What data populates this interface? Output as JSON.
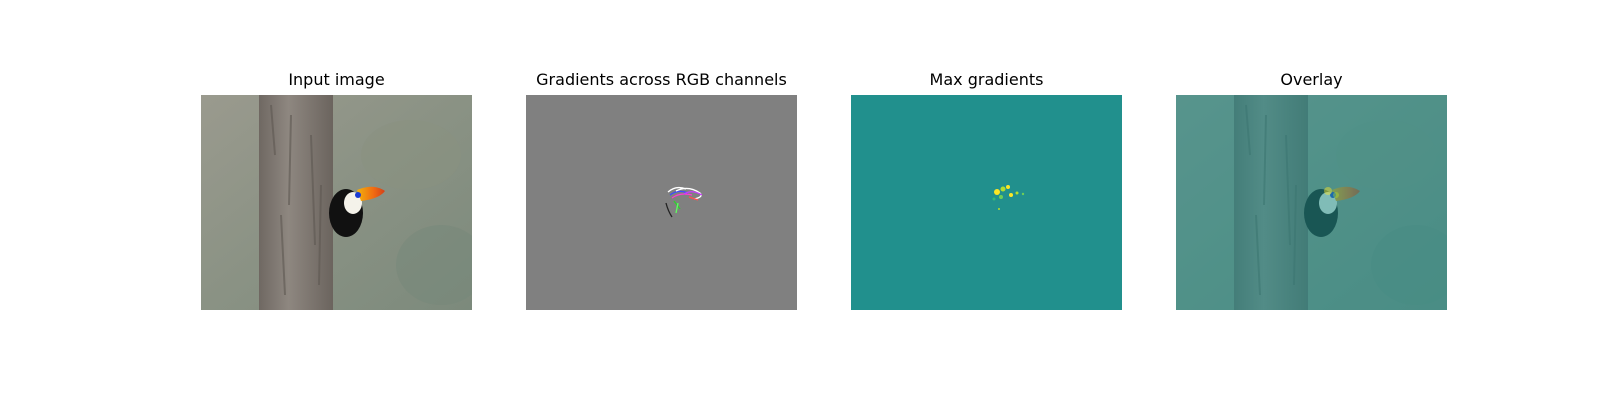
{
  "figure": {
    "panels": [
      {
        "title": "Input image"
      },
      {
        "title": "Gradients across RGB channels"
      },
      {
        "title": "Max gradients"
      },
      {
        "title": "Overlay"
      }
    ]
  },
  "colors": {
    "gradient_background": "#808080",
    "max_gradient_background": "#21908d",
    "max_gradient_highlight": "#fde725",
    "overlay_tint": "#21908d"
  }
}
